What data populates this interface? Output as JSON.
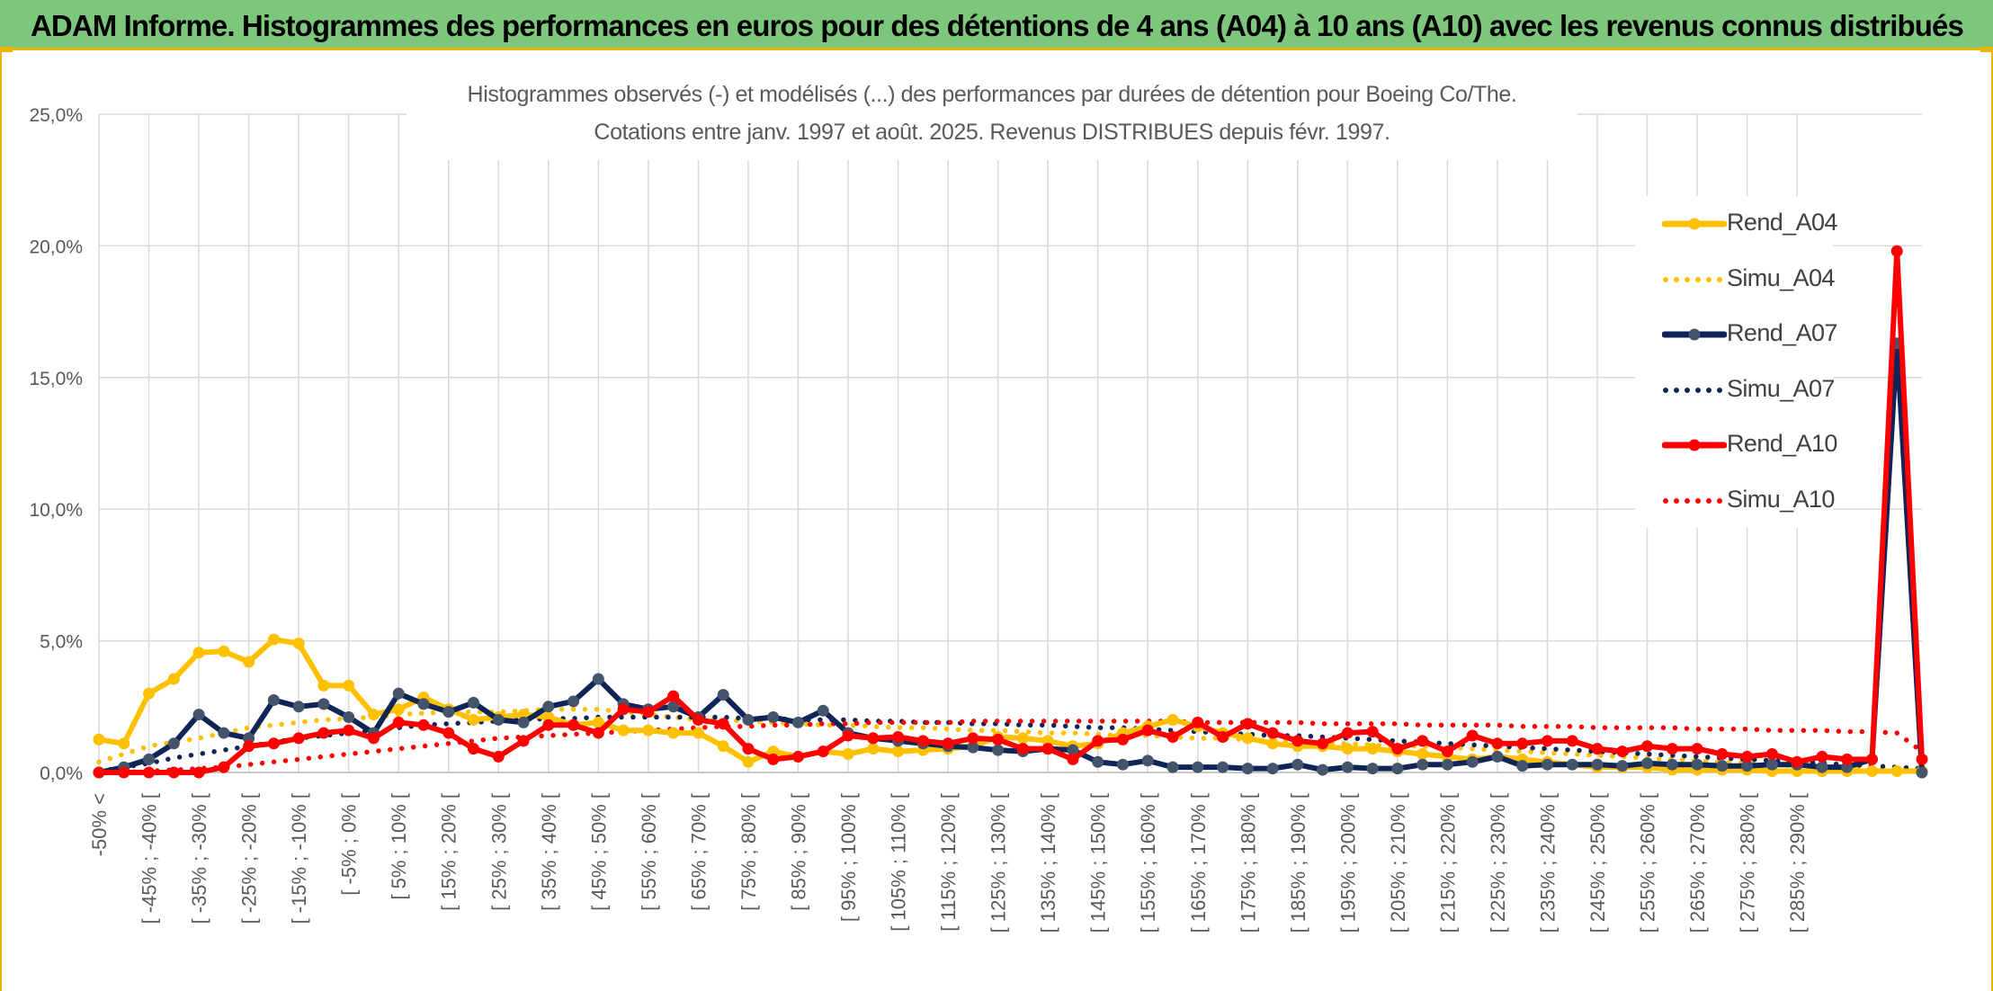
{
  "header": {
    "title": "ADAM Informe. Histogrammes des performances en euros pour des détentions de 4 ans (A04) à 10 ans (A10) avec les revenus connus distribués",
    "background": "#7cc77c",
    "accent": "#e8b400"
  },
  "chart_data": {
    "type": "line",
    "title_line1": "Histogrammes observés (-) et modélisés (...) des performances par durées de détention pour Boeing Co/The.",
    "title_line2": "Cotations entre janv. 1997 et août. 2025. Revenus DISTRIBUES depuis févr. 1997.",
    "ylim": [
      0,
      25
    ],
    "y_ticks": [
      0,
      5,
      10,
      15,
      20,
      25
    ],
    "y_tick_labels": [
      "0,0%",
      "5,0%",
      "10,0%",
      "15,0%",
      "20,0%",
      "25,0%"
    ],
    "grid": true,
    "legend_position": "right",
    "x_tick_labels": [
      "-50% <",
      "[ -45% ; -40% [",
      "[ -35% ; -30% [",
      "[ -25% ; -20% [",
      "[ -15% ; -10% [",
      "[ -5% ; 0% [",
      "[ 5% ; 10% [",
      "[ 15% ; 20% [",
      "[ 25% ; 30% [",
      "[ 35% ; 40% [",
      "[ 45% ; 50% [",
      "[ 55% ; 60% [",
      "[ 65% ; 70% [",
      "[ 75% ; 80% [",
      "[ 85% ; 90% [",
      "[ 95% ; 100% [",
      "[ 105% ; 110% [",
      "[ 115% ; 120% [",
      "[ 125% ; 130% [",
      "[ 135% ; 140% [",
      "[ 145% ; 150% [",
      "[ 155% ; 160% [",
      "[ 165% ; 170% [",
      "[ 175% ; 180% [",
      "[ 185% ; 190% [",
      "[ 195% ; 200% [",
      "[ 205% ; 210% [",
      "[ 215% ; 220% [",
      "[ 225% ; 230% [",
      "[ 235% ; 240% [",
      "[ 245% ; 250% [",
      "[ 255% ; 260% [",
      "[ 265% ; 270% [",
      "[ 275% ; 280% [",
      "[ 285% ; 290% ["
    ],
    "series": [
      {
        "name": "Rend_A04",
        "style": "observed",
        "color": "#ffc000",
        "values": [
          1.25,
          1.1,
          3.0,
          3.55,
          4.55,
          4.6,
          4.2,
          5.05,
          4.9,
          3.3,
          3.3,
          2.2,
          2.4,
          2.85,
          2.4,
          2.0,
          2.1,
          2.2,
          2.1,
          1.8,
          1.9,
          1.6,
          1.6,
          1.5,
          1.5,
          1.0,
          0.4,
          0.8,
          0.6,
          0.8,
          0.7,
          0.9,
          0.8,
          0.85,
          0.9,
          1.0,
          1.35,
          1.3,
          1.2,
          1.0,
          1.1,
          1.5,
          1.75,
          2.0,
          1.75,
          1.5,
          1.3,
          1.1,
          1.0,
          1.0,
          0.9,
          0.9,
          0.8,
          0.7,
          0.6,
          0.5,
          0.6,
          0.5,
          0.4,
          0.3,
          0.2,
          0.2,
          0.2,
          0.1,
          0.1,
          0.1,
          0.1,
          0.05,
          0.05,
          0.05,
          0.05,
          0.05,
          0.05,
          0.05
        ]
      },
      {
        "name": "Simu_A04",
        "style": "simulated",
        "color": "#ffc000",
        "values": [
          0.4,
          0.7,
          1.0,
          1.15,
          1.3,
          1.5,
          1.7,
          1.8,
          1.9,
          2.0,
          2.05,
          2.1,
          2.2,
          2.25,
          2.3,
          2.3,
          2.3,
          2.35,
          2.4,
          2.4,
          2.4,
          2.3,
          2.2,
          2.1,
          2.0,
          2.0,
          1.95,
          1.9,
          1.85,
          1.8,
          1.8,
          1.75,
          1.7,
          1.7,
          1.65,
          1.6,
          1.6,
          1.55,
          1.5,
          1.5,
          1.45,
          1.4,
          1.4,
          1.35,
          1.3,
          1.3,
          1.25,
          1.2,
          1.15,
          1.1,
          1.1,
          1.05,
          1.0,
          1.0,
          0.95,
          0.9,
          0.85,
          0.8,
          0.75,
          0.7,
          0.65,
          0.6,
          0.55,
          0.5,
          0.45,
          0.4,
          0.35,
          0.3,
          0.25,
          0.2,
          0.15,
          0.1,
          0.05,
          0.05
        ]
      },
      {
        "name": "Rend_A07",
        "style": "observed",
        "color": "#0f2557",
        "values": [
          0.0,
          0.2,
          0.5,
          1.1,
          2.2,
          1.5,
          1.3,
          2.75,
          2.5,
          2.6,
          2.1,
          1.5,
          3.0,
          2.6,
          2.3,
          2.65,
          2.0,
          1.9,
          2.5,
          2.7,
          3.55,
          2.6,
          2.4,
          2.5,
          2.1,
          2.95,
          2.0,
          2.1,
          1.9,
          2.35,
          1.5,
          1.3,
          1.2,
          1.1,
          1.0,
          0.95,
          0.85,
          0.8,
          0.9,
          0.85,
          0.4,
          0.3,
          0.45,
          0.2,
          0.2,
          0.2,
          0.15,
          0.15,
          0.3,
          0.1,
          0.2,
          0.15,
          0.15,
          0.3,
          0.3,
          0.4,
          0.6,
          0.25,
          0.3,
          0.3,
          0.3,
          0.25,
          0.35,
          0.3,
          0.3,
          0.25,
          0.25,
          0.3,
          0.3,
          0.2,
          0.2,
          0.5,
          16.3,
          0.0
        ]
      },
      {
        "name": "Simu_A07",
        "style": "simulated",
        "color": "#0f2557",
        "values": [
          0.05,
          0.2,
          0.35,
          0.55,
          0.7,
          0.85,
          1.0,
          1.15,
          1.3,
          1.4,
          1.5,
          1.6,
          1.7,
          1.8,
          1.85,
          1.9,
          1.95,
          2.0,
          2.05,
          2.05,
          2.1,
          2.1,
          2.1,
          2.1,
          2.1,
          2.1,
          2.05,
          2.05,
          2.0,
          2.0,
          2.0,
          1.95,
          1.95,
          1.9,
          1.9,
          1.85,
          1.85,
          1.8,
          1.8,
          1.75,
          1.7,
          1.7,
          1.65,
          1.6,
          1.55,
          1.5,
          1.45,
          1.4,
          1.4,
          1.35,
          1.3,
          1.25,
          1.2,
          1.15,
          1.1,
          1.05,
          1.0,
          0.95,
          0.9,
          0.85,
          0.8,
          0.75,
          0.7,
          0.65,
          0.6,
          0.55,
          0.5,
          0.45,
          0.4,
          0.35,
          0.3,
          0.25,
          0.2,
          0.15
        ]
      },
      {
        "name": "Rend_A10",
        "style": "observed",
        "color": "#ff0000",
        "values": [
          0.0,
          0.0,
          0.0,
          0.0,
          0.0,
          0.2,
          1.0,
          1.1,
          1.3,
          1.5,
          1.6,
          1.3,
          1.9,
          1.8,
          1.5,
          0.9,
          0.6,
          1.2,
          1.8,
          1.8,
          1.5,
          2.4,
          2.3,
          2.9,
          2.0,
          1.85,
          0.9,
          0.5,
          0.6,
          0.8,
          1.4,
          1.3,
          1.35,
          1.2,
          1.1,
          1.3,
          1.25,
          0.9,
          0.9,
          0.5,
          1.2,
          1.25,
          1.6,
          1.35,
          1.9,
          1.35,
          1.85,
          1.5,
          1.2,
          1.1,
          1.5,
          1.55,
          0.9,
          1.2,
          0.8,
          1.4,
          1.1,
          1.1,
          1.2,
          1.2,
          0.9,
          0.8,
          1.0,
          0.9,
          0.9,
          0.7,
          0.6,
          0.7,
          0.4,
          0.6,
          0.5,
          0.5,
          19.8,
          0.5
        ]
      },
      {
        "name": "Simu_A10",
        "style": "simulated",
        "color": "#ff0000",
        "values": [
          0.0,
          0.0,
          0.05,
          0.1,
          0.15,
          0.2,
          0.3,
          0.4,
          0.5,
          0.6,
          0.7,
          0.8,
          0.9,
          1.0,
          1.1,
          1.2,
          1.3,
          1.35,
          1.4,
          1.45,
          1.5,
          1.55,
          1.6,
          1.65,
          1.7,
          1.75,
          1.75,
          1.8,
          1.8,
          1.85,
          1.85,
          1.9,
          1.9,
          1.9,
          1.9,
          1.95,
          1.95,
          1.95,
          1.95,
          1.95,
          1.95,
          1.95,
          1.95,
          1.95,
          1.9,
          1.9,
          1.9,
          1.9,
          1.9,
          1.85,
          1.85,
          1.85,
          1.85,
          1.8,
          1.8,
          1.8,
          1.8,
          1.75,
          1.75,
          1.75,
          1.7,
          1.7,
          1.7,
          1.7,
          1.65,
          1.65,
          1.65,
          1.6,
          1.6,
          1.6,
          1.55,
          1.55,
          1.5,
          0.8
        ]
      }
    ]
  }
}
